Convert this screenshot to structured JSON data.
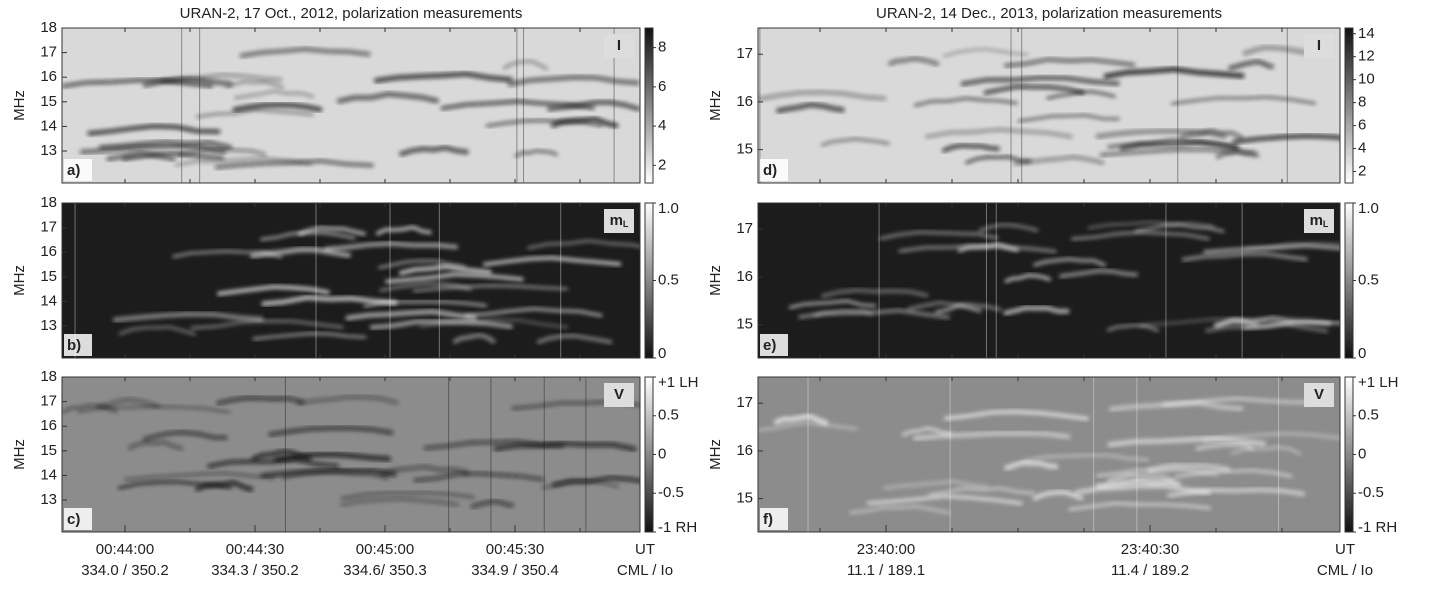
{
  "chart_data": [
    {
      "type": "spectrogram",
      "title": "URAN-2, 17 Oct., 2012, polarization measurements",
      "y_label": "MHz",
      "ylim": [
        11.7,
        18
      ],
      "yticks": [
        13,
        14,
        15,
        16,
        17,
        18
      ],
      "panel_label": "a)",
      "channel": "I",
      "colorbar": {
        "lim": [
          1.1,
          9
        ],
        "ticks": [
          2,
          4,
          6,
          8
        ]
      },
      "shade": "intensity",
      "feature_tone": "dark"
    },
    {
      "type": "spectrogram",
      "y_label": "MHz",
      "ylim": [
        11.7,
        18
      ],
      "yticks": [
        13,
        14,
        15,
        16,
        17,
        18
      ],
      "panel_label": "b)",
      "channel": "m",
      "channel_sub": "L",
      "colorbar": {
        "lim": [
          0,
          1
        ],
        "ticks": [
          0,
          0.5,
          {
            "value": 1,
            "label": "1.0"
          }
        ]
      },
      "shade": "degree",
      "feature_tone": "light"
    },
    {
      "type": "spectrogram",
      "y_label": "MHz",
      "ylim": [
        11.7,
        18
      ],
      "yticks": [
        13,
        14,
        15,
        16,
        17,
        18
      ],
      "panel_label": "c)",
      "channel": "V",
      "colorbar": {
        "lim": [
          -1,
          1
        ],
        "ticks": [
          {
            "value": 1,
            "label": "+1 LH"
          },
          0.5,
          0,
          -0.5,
          {
            "value": -1,
            "label": "-1 RH"
          }
        ]
      },
      "shade": "circular",
      "feature_tone": "dark",
      "xtick_labels": [
        "00:44:00",
        "00:44:30",
        "00:45:00",
        "00:45:30"
      ],
      "xtick_sublabels": [
        "334.0 / 350.2",
        "334.3 / 350.2",
        "334.6/ 350.3",
        "334.9 / 350.4"
      ],
      "x_label": "UT",
      "x_sublabel": "CML / Io"
    },
    {
      "type": "spectrogram",
      "title": "URAN-2, 14 Dec., 2013, polarization measurements",
      "y_label": "MHz",
      "ylim": [
        14.3,
        17.55
      ],
      "yticks": [
        15,
        16,
        17
      ],
      "panel_label": "d)",
      "channel": "I",
      "colorbar": {
        "lim": [
          1,
          14.5
        ],
        "ticks": [
          2,
          4,
          6,
          8,
          10,
          12,
          14
        ]
      },
      "shade": "intensity",
      "feature_tone": "dark"
    },
    {
      "type": "spectrogram",
      "y_label": "MHz",
      "ylim": [
        14.3,
        17.55
      ],
      "yticks": [
        15,
        16,
        17
      ],
      "panel_label": "e)",
      "channel": "m",
      "channel_sub": "L",
      "colorbar": {
        "lim": [
          0,
          1
        ],
        "ticks": [
          0,
          0.5,
          {
            "value": 1,
            "label": "1.0"
          }
        ]
      },
      "shade": "degree",
      "feature_tone": "light"
    },
    {
      "type": "spectrogram",
      "y_label": "MHz",
      "ylim": [
        14.3,
        17.55
      ],
      "yticks": [
        15,
        16,
        17
      ],
      "panel_label": "f)",
      "channel": "V",
      "colorbar": {
        "lim": [
          -1,
          1
        ],
        "ticks": [
          {
            "value": 1,
            "label": "+1 LH"
          },
          0.5,
          0,
          -0.5,
          {
            "value": -1,
            "label": "-1 RH"
          }
        ]
      },
      "shade": "circular",
      "feature_tone": "light",
      "xtick_labels": [
        "23:40:00",
        "23:40:30"
      ],
      "xtick_sublabels": [
        "11.1 / 189.1",
        "11.4 / 189.2"
      ],
      "x_label": "UT",
      "x_sublabel": "CML / Io"
    }
  ]
}
